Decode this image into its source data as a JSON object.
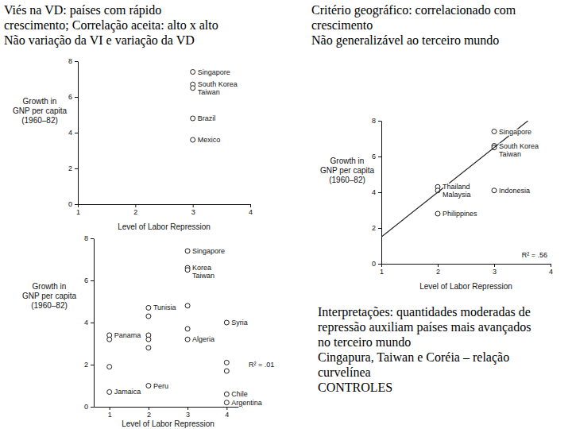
{
  "text_blocks": [
    [
      "Viés na VD: países com rápido",
      "crescimento; Correlação aceita: alto x alto",
      "Não variação da VI e variação da VD"
    ],
    [
      "Critério geográfico: correlacionado com",
      "crescimento",
      "Não generalizável ao terceiro mundo"
    ],
    [
      "Interpretações: quantidades moderadas de",
      "repressão auxiliam países mais avançados",
      "no terceiro mundo",
      "Cingapura, Taiwan e Coréia – relação",
      "curvelínea",
      "CONTROLES"
    ]
  ],
  "chart_data": [
    {
      "type": "scatter",
      "xlabel": "Level of Labor Repression",
      "ylabel": [
        "Growth in",
        "GNP per capita",
        "(1960–82)"
      ],
      "xlim": [
        1,
        4
      ],
      "ylim": [
        0,
        8
      ],
      "xticks": [
        1,
        2,
        3,
        4
      ],
      "yticks": [
        0,
        2,
        4,
        6,
        8
      ],
      "series": [
        {
          "marker": "circle",
          "color": "#222222",
          "x": [
            3,
            3,
            3,
            3,
            3
          ],
          "values": [
            7.4,
            6.7,
            6.5,
            4.8,
            3.6
          ],
          "labels": [
            "Singapore",
            "South Korea",
            "Taiwan",
            "Brazil",
            "Mexico"
          ]
        }
      ]
    },
    {
      "type": "scatter",
      "xlabel": "Level of Labor Repression",
      "ylabel": [
        "Growth in",
        "GNP per capita",
        "(1960–82)"
      ],
      "xlim": [
        1,
        4
      ],
      "ylim": [
        0,
        8
      ],
      "xticks": [
        1,
        2,
        3,
        4
      ],
      "yticks": [
        0,
        2,
        4,
        6,
        8
      ],
      "annotations": [
        "R² = .56"
      ],
      "series": [
        {
          "marker": "circle",
          "color": "#222222",
          "x": [
            3,
            3,
            3,
            2,
            2,
            3,
            2
          ],
          "values": [
            7.4,
            6.6,
            6.5,
            4.3,
            4.1,
            4.1,
            2.8
          ],
          "labels": [
            "Singapore",
            "South Korea",
            "Taiwan",
            "Thailand",
            "Malaysia",
            "Indonesia",
            "Philippines"
          ]
        },
        {
          "type": "line",
          "line_style": "solid",
          "color": "#222222",
          "x": [
            1,
            3.6
          ],
          "values": [
            1.5,
            8
          ]
        }
      ]
    },
    {
      "type": "scatter",
      "xlabel": "Level of Labor Repression",
      "ylabel": [
        "Growth in",
        "GNP per capita",
        "(1960–82)"
      ],
      "xlim": [
        0.6,
        4.4
      ],
      "ylim": [
        0,
        8
      ],
      "xticks": [
        1,
        2,
        3,
        4
      ],
      "yticks": [
        0,
        2,
        4,
        6,
        8
      ],
      "annotations": [
        "R² = .01"
      ],
      "series": [
        {
          "marker": "circle",
          "color": "#222222",
          "x": [
            1,
            1,
            1,
            1,
            2,
            2,
            2,
            2,
            2,
            2,
            3,
            3,
            3,
            3,
            3,
            3,
            4,
            4,
            4,
            4,
            4
          ],
          "values": [
            3.4,
            3.2,
            1.9,
            0.7,
            4.7,
            4.3,
            3.4,
            3.2,
            2.8,
            1.0,
            7.4,
            6.6,
            6.5,
            4.8,
            3.7,
            3.2,
            4.0,
            2.1,
            1.7,
            0.6,
            0.2
          ],
          "labels": [
            "Panama",
            null,
            null,
            "Jamaica",
            "Tunisia",
            null,
            null,
            null,
            null,
            "Peru",
            "Singapore",
            "Korea",
            "Taiwan",
            null,
            null,
            "Algeria",
            "Syria",
            null,
            null,
            "Chile",
            "Argentina"
          ]
        }
      ]
    }
  ]
}
